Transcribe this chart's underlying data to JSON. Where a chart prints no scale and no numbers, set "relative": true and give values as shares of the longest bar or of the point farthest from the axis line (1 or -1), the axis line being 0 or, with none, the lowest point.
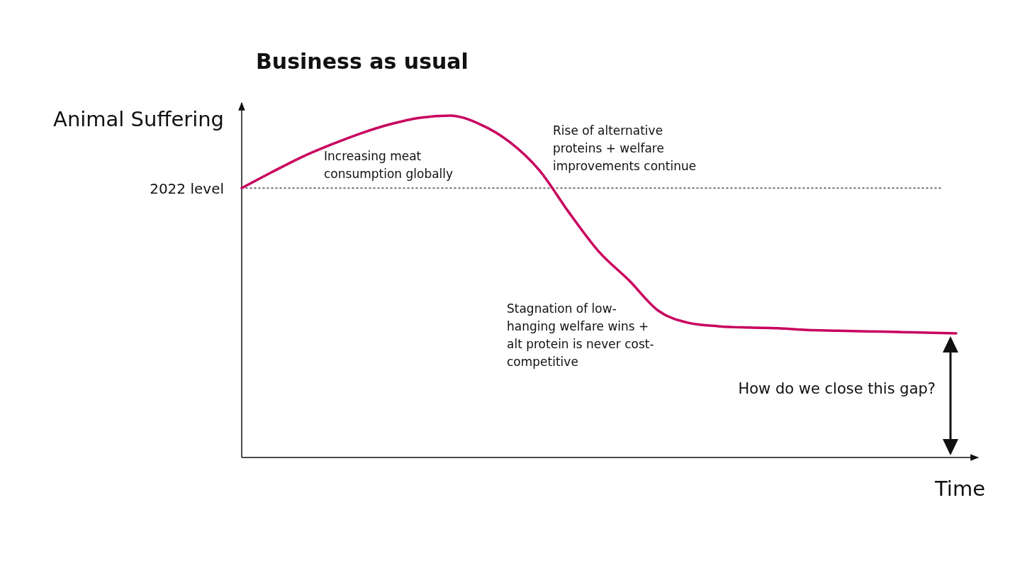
{
  "chart_data": {
    "type": "line",
    "title": "Business as usual",
    "xlabel": "Time",
    "ylabel": "Animal Suffering",
    "relative": true,
    "categories": [
      null,
      null,
      null,
      null,
      null,
      null,
      null,
      null,
      null,
      null,
      null,
      null,
      null,
      null,
      null,
      null,
      null,
      null,
      null,
      null,
      null,
      null,
      null,
      null,
      null
    ],
    "series": [
      {
        "color": "#c8005f",
        "values": [
          0.788,
          0.834,
          0.878,
          0.915,
          0.948,
          0.975,
          0.994,
          1.0,
          0.975,
          0.923,
          0.84,
          0.716,
          0.602,
          0.519,
          0.429,
          0.394,
          0.384,
          0.38,
          0.378,
          0.373,
          0.371,
          0.369,
          0.367,
          0.365,
          0.363
        ]
      }
    ],
    "ref_lines": [
      {
        "axis": "y",
        "value": 0.788,
        "label": "2022 level",
        "line_style": "dotted",
        "color": "#222222"
      }
    ],
    "annotations": [
      "Increasing meat consumption globally",
      "Rise of alternative proteins + welfare improvements continue",
      "Stagnation of low-hanging welfare wins + alt protein is never cost-competitive",
      "How do we close this gap?"
    ],
    "marker": "none",
    "line_style": "solid"
  }
}
